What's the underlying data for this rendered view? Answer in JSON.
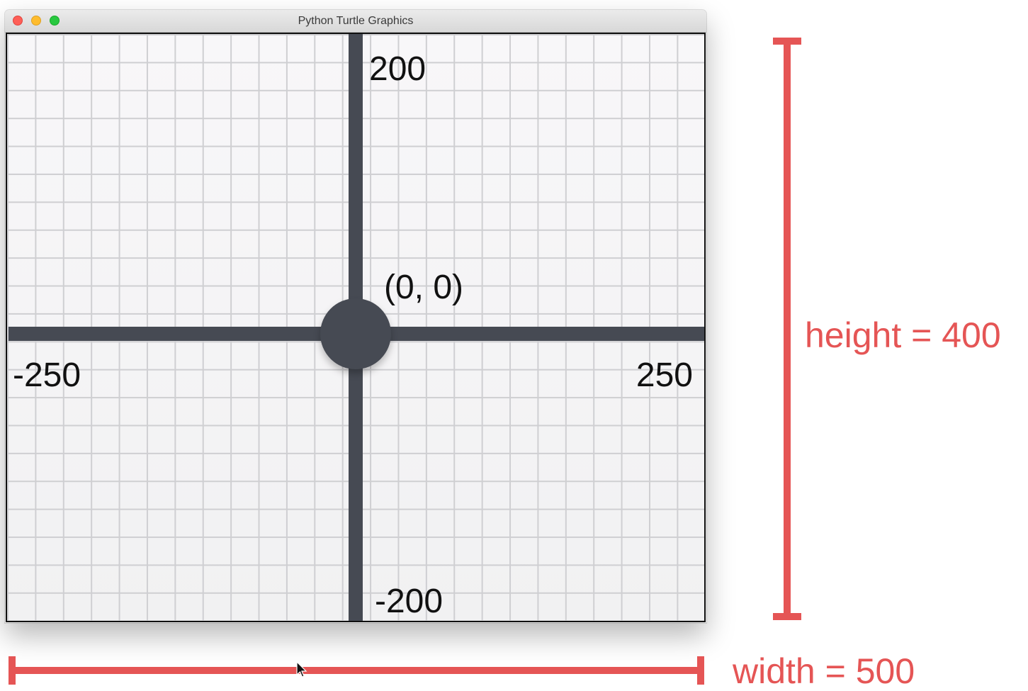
{
  "window": {
    "title": "Python Turtle Graphics"
  },
  "canvas": {
    "labels": {
      "top": "200",
      "origin": "(0, 0)",
      "left": "-250",
      "right": "250",
      "bottom": "-200"
    }
  },
  "annotations": {
    "height_label": "height = 400",
    "width_label": "width = 500",
    "color": "#e55555"
  },
  "icons": {
    "close": "close-dot",
    "minimize": "minimize-dot",
    "maximize": "maximize-dot",
    "cursor": "arrow-cursor"
  }
}
